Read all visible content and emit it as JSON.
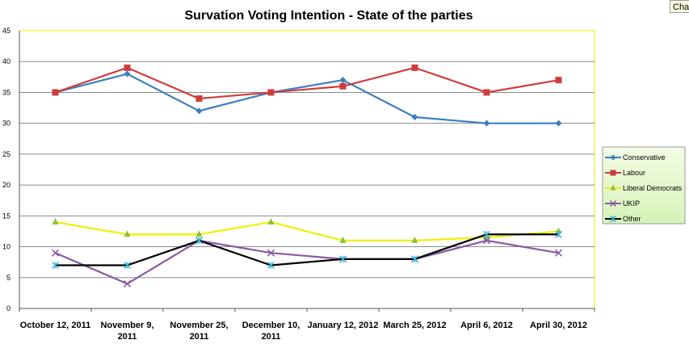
{
  "corner_tab": "Cha",
  "chart_data": {
    "type": "line",
    "title": "Survation Voting Intention - State of the parties",
    "xlabel": "",
    "ylabel": "",
    "ylim": [
      0,
      45
    ],
    "yticks": [
      0,
      5,
      10,
      15,
      20,
      25,
      30,
      35,
      40,
      45
    ],
    "grid": true,
    "legend": "right",
    "categories": [
      [
        "October 12, 2011"
      ],
      [
        "November 9,",
        "2011"
      ],
      [
        "November 25,",
        "2011"
      ],
      [
        "December 10,",
        "2011"
      ],
      [
        "January 12, 2012"
      ],
      [
        "March 25, 2012"
      ],
      [
        "April 6, 2012"
      ],
      [
        "April 30, 2012"
      ]
    ],
    "series": [
      {
        "name": "Conservative",
        "color": "#3d7fc1",
        "marker": "diamond",
        "values": [
          35,
          38,
          32,
          35,
          37,
          31,
          30,
          30
        ]
      },
      {
        "name": "Labour",
        "color": "#cf3c3c",
        "marker": "square",
        "values": [
          35,
          39,
          34,
          35,
          36,
          39,
          35,
          37
        ]
      },
      {
        "name": "Liberal Democrats",
        "color": "#f0f000",
        "marker": "triangle",
        "marker_color": "#8fbf40",
        "values": [
          14,
          12,
          12,
          14,
          11,
          11,
          11.5,
          12.5
        ]
      },
      {
        "name": "UKIP",
        "color": "#8a5aa3",
        "marker": "x",
        "values": [
          9,
          4,
          11,
          9,
          8,
          8,
          11,
          9
        ]
      },
      {
        "name": "Other",
        "color": "#000000",
        "marker": "star",
        "marker_color": "#3fb7d9",
        "values": [
          7,
          7,
          11,
          7,
          8,
          8,
          12,
          12
        ]
      }
    ]
  }
}
